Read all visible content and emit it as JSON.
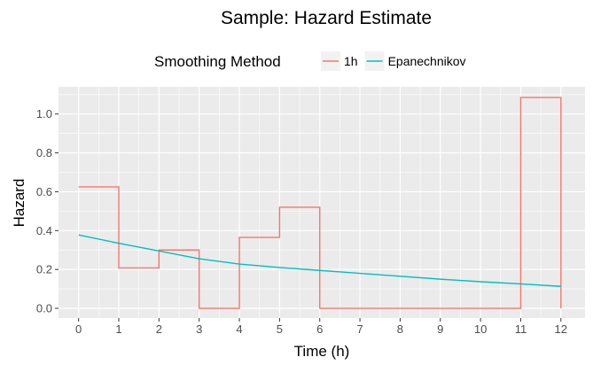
{
  "chart_data": {
    "type": "line",
    "title": "Sample: Hazard Estimate",
    "xlabel": "Time (h)",
    "ylabel": "Hazard",
    "xlim": [
      -0.5,
      12.6
    ],
    "ylim": [
      -0.05,
      1.14
    ],
    "x_ticks": [
      0,
      1,
      2,
      3,
      4,
      5,
      6,
      7,
      8,
      9,
      10,
      11,
      12
    ],
    "x_tick_labels": [
      "0",
      "1",
      "2",
      "3",
      "4",
      "5",
      "6",
      "7",
      "8",
      "9",
      "10",
      "11",
      "12"
    ],
    "y_ticks": [
      0.0,
      0.2,
      0.4,
      0.6,
      0.8,
      1.0
    ],
    "y_tick_labels": [
      "0.0",
      "0.2",
      "0.4",
      "0.6",
      "0.8",
      "1.0"
    ],
    "grid": true,
    "legend": {
      "title": "Smoothing Method",
      "position": "top"
    },
    "series": [
      {
        "name": "1h",
        "color": "#F8766D",
        "style": "step",
        "x": [
          0,
          1,
          1,
          2,
          2,
          3,
          3,
          4,
          4,
          5,
          5,
          6,
          6,
          7,
          8,
          9,
          10,
          11,
          11,
          12,
          12
        ],
        "y": [
          0.625,
          0.625,
          0.208,
          0.208,
          0.3,
          0.3,
          0.0,
          0.0,
          0.365,
          0.365,
          0.52,
          0.52,
          0.0,
          0.0,
          0.0,
          0.0,
          0.0,
          0.0,
          1.085,
          1.085,
          0.0
        ]
      },
      {
        "name": "Epanechnikov",
        "color": "#00BFC4",
        "style": "line",
        "x": [
          0,
          1,
          2,
          3,
          4,
          5,
          6,
          7,
          8,
          9,
          10,
          11,
          12
        ],
        "y": [
          0.378,
          0.335,
          0.295,
          0.255,
          0.228,
          0.21,
          0.195,
          0.18,
          0.165,
          0.15,
          0.137,
          0.126,
          0.113
        ]
      }
    ]
  }
}
